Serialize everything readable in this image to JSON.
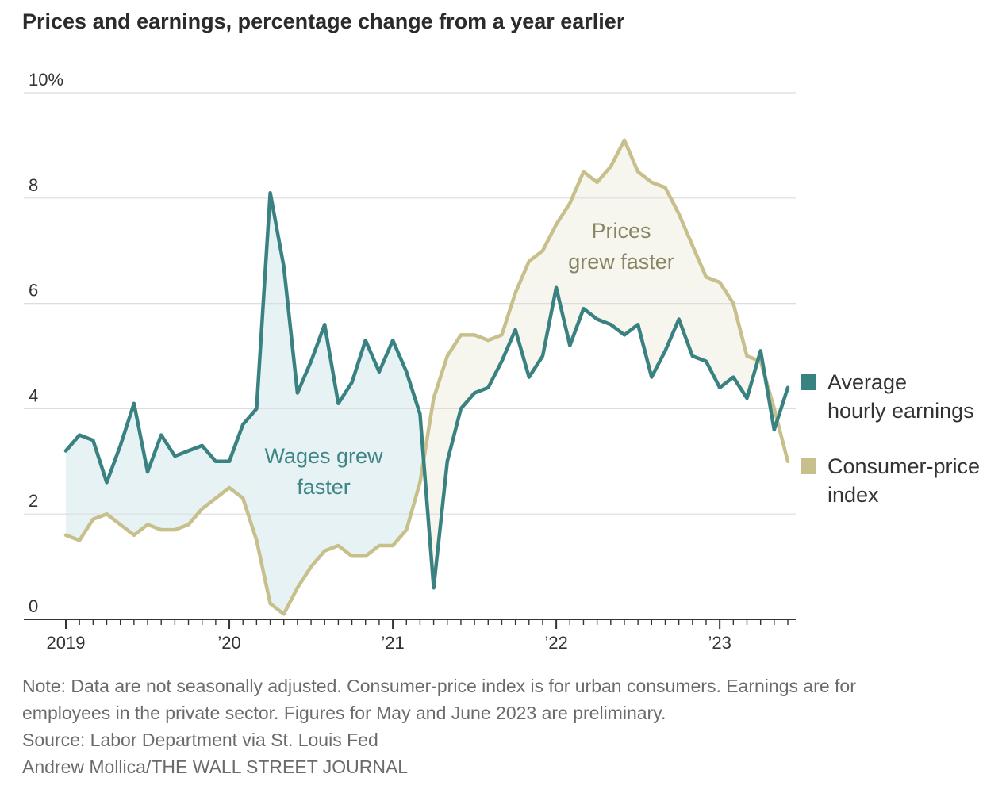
{
  "title": "Prices and earnings, percentage change from a year earlier",
  "notes": {
    "note": "Note: Data are not seasonally adjusted. Consumer-price index is for urban consumers. Earnings are for",
    "note_cont": "employees in the private sector. Figures for May and June 2023 are preliminary.",
    "source": "Source: Labor Department via St. Louis Fed",
    "credit": "Andrew Mollica/THE WALL STREET JOURNAL"
  },
  "colors": {
    "earnings": "#3a8282",
    "cpi": "#c8c08c",
    "wage_fill": "#e6f2f4",
    "price_fill": "#f6f5ee",
    "grid": "#dddddd",
    "axis": "#333333"
  },
  "chart_data": {
    "type": "line",
    "title": "Prices and earnings, percentage change from a year earlier",
    "x_start": "2019-01",
    "x_end": "2023-06",
    "x_ticks": [
      {
        "label": "2019",
        "month": "2019-01"
      },
      {
        "label": "’20",
        "month": "2020-01"
      },
      {
        "label": "’21",
        "month": "2021-01"
      },
      {
        "label": "’22",
        "month": "2022-01"
      },
      {
        "label": "’23",
        "month": "2023-01"
      }
    ],
    "y_ticks": [
      "0",
      "2",
      "4",
      "6",
      "8",
      "10%"
    ],
    "ylim": [
      0,
      10
    ],
    "grid": true,
    "legend_position": "right",
    "series": [
      {
        "name": "Average hourly earnings",
        "color": "#3a8282",
        "values": [
          3.2,
          3.5,
          3.4,
          2.6,
          3.3,
          4.1,
          2.8,
          3.5,
          3.1,
          3.2,
          3.3,
          3.0,
          3.0,
          3.7,
          4.0,
          8.1,
          6.7,
          4.3,
          4.9,
          5.6,
          4.1,
          4.5,
          5.3,
          4.7,
          5.3,
          4.7,
          3.9,
          0.6,
          3.0,
          4.0,
          4.3,
          4.4,
          4.9,
          5.5,
          4.6,
          5.0,
          6.3,
          5.2,
          5.9,
          5.7,
          5.6,
          5.4,
          5.6,
          4.6,
          5.1,
          5.7,
          5.0,
          4.9,
          4.4,
          4.6,
          4.2,
          5.1,
          3.6,
          4.4
        ]
      },
      {
        "name": "Consumer-price index",
        "color": "#c8c08c",
        "values": [
          1.6,
          1.5,
          1.9,
          2.0,
          1.8,
          1.6,
          1.8,
          1.7,
          1.7,
          1.8,
          2.1,
          2.3,
          2.5,
          2.3,
          1.5,
          0.3,
          0.1,
          0.6,
          1.0,
          1.3,
          1.4,
          1.2,
          1.2,
          1.4,
          1.4,
          1.7,
          2.6,
          4.2,
          5.0,
          5.4,
          5.4,
          5.3,
          5.4,
          6.2,
          6.8,
          7.0,
          7.5,
          7.9,
          8.5,
          8.3,
          8.6,
          9.1,
          8.5,
          8.3,
          8.2,
          7.7,
          7.1,
          6.5,
          6.4,
          6.0,
          5.0,
          4.9,
          4.0,
          3.0
        ]
      }
    ],
    "annotations": [
      {
        "lines": [
          "Wages grew",
          "faster"
        ],
        "color": "#3f8585"
      },
      {
        "lines": [
          "Prices",
          "grew faster"
        ],
        "color": "#8a8563"
      }
    ],
    "legend": [
      {
        "lines": [
          "Average",
          "hourly earnings"
        ],
        "color": "#3a8282"
      },
      {
        "lines": [
          "Consumer-price",
          "index"
        ],
        "color": "#c8c08c"
      }
    ]
  }
}
